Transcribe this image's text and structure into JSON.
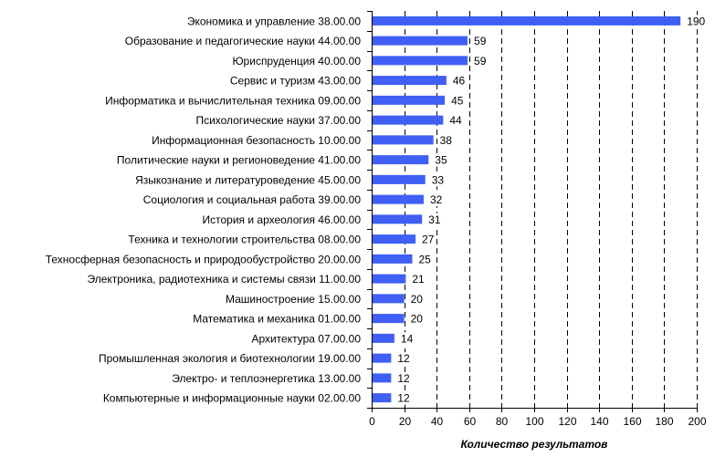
{
  "chart_data": {
    "type": "bar",
    "orientation": "horizontal",
    "categories": [
      "Экономика и управление 38.00.00",
      "Образование и педагогические науки 44.00.00",
      "Юриспруденция 40.00.00",
      "Сервис и туризм 43.00.00",
      "Информатика и вычислительная техника 09.00.00",
      "Психологические науки 37.00.00",
      "Информационная безопасность 10.00.00",
      "Политические науки и регионоведение 41.00.00",
      "Языкознание и литературоведение 45.00.00",
      "Социология и социальная работа 39.00.00",
      "История и археология 46.00.00",
      "Техника и технологии строительства 08.00.00",
      "Техносферная безопасность и природообустройство 20.00.00",
      "Электроника, радиотехника и системы связи 11.00.00",
      "Машиностроение 15.00.00",
      "Математика и механика 01.00.00",
      "Архитектура 07.00.00",
      "Промышленная экология и биотехнологии 19.00.00",
      "Электро- и теплоэнергетика 13.00.00",
      "Компьютерные и информационные науки 02.00.00"
    ],
    "values": [
      190,
      59,
      59,
      46,
      45,
      44,
      38,
      35,
      33,
      32,
      31,
      27,
      25,
      21,
      20,
      20,
      14,
      12,
      12,
      12
    ],
    "xlabel": "Количество результатов",
    "xlim": [
      0,
      200
    ],
    "xticks": [
      0,
      20,
      40,
      60,
      80,
      100,
      120,
      140,
      160,
      180,
      200
    ],
    "grid": "vertical dashed",
    "bar_color": "#3f5ff5",
    "grid_color": "#000000"
  }
}
